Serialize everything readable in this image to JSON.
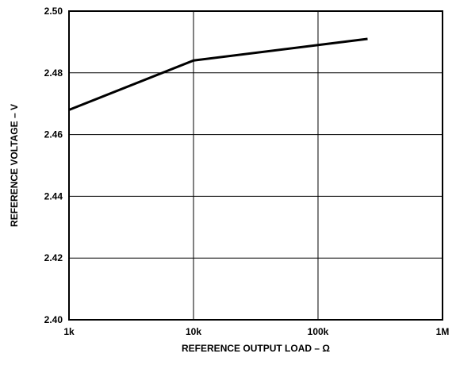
{
  "chart_data": {
    "type": "line",
    "title": "",
    "xlabel": "REFERENCE OUTPUT LOAD – Ω",
    "ylabel": "REFERENCE VOLTAGE – V",
    "x_scale": "log",
    "xlim": [
      1000,
      1000000
    ],
    "ylim": [
      2.4,
      2.5
    ],
    "x_ticks": [
      {
        "value": 1000,
        "label": "1k"
      },
      {
        "value": 10000,
        "label": "10k"
      },
      {
        "value": 100000,
        "label": "100k"
      },
      {
        "value": 1000000,
        "label": "1M"
      }
    ],
    "y_ticks": [
      {
        "value": 2.4,
        "label": "2.40"
      },
      {
        "value": 2.42,
        "label": "2.42"
      },
      {
        "value": 2.44,
        "label": "2.44"
      },
      {
        "value": 2.46,
        "label": "2.46"
      },
      {
        "value": 2.48,
        "label": "2.48"
      },
      {
        "value": 2.5,
        "label": "2.50"
      }
    ],
    "grid": true,
    "legend": "none",
    "series": [
      {
        "x": [
          1000,
          10000,
          100000,
          250000
        ],
        "y": [
          2.468,
          2.484,
          2.489,
          2.491
        ]
      }
    ]
  }
}
